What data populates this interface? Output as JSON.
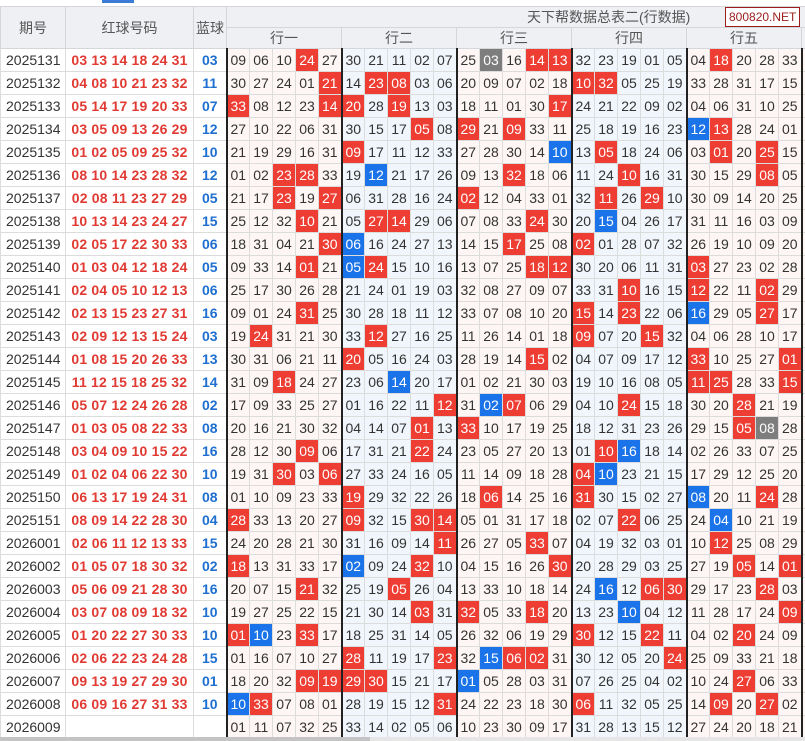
{
  "header": {
    "issue": "期号",
    "red": "红球号码",
    "blue": "蓝球",
    "title": "天下帮数据总表二(行数据)",
    "brand": "800820.NET",
    "groups": [
      "行一",
      "行二",
      "行三",
      "行四",
      "行五"
    ]
  },
  "colors": {
    "red_hit": "#ee3d33",
    "blue_hit": "#1a73e8",
    "both_hit": "#7d7d7d",
    "red_text": "#e03a33",
    "blue_text": "#1e6fd0"
  },
  "rows": [
    {
      "issue": "2025131",
      "red": "03 13 14 18 24 31",
      "blue": "03",
      "cells": "09 06 10 24 27 30 21 11 02 07 25 03 16 14 13 32 23 19 01 05 04 18 20 28 33"
    },
    {
      "issue": "2025132",
      "red": "04 08 10 21 23 32",
      "blue": "11",
      "cells": "30 27 24 01 21 14 23 08 03 06 20 09 07 02 18 10 32 05 25 19 33 28 31 17 15"
    },
    {
      "issue": "2025133",
      "red": "05 14 17 19 20 33",
      "blue": "07",
      "cells": "33 08 12 23 14 20 28 19 13 03 18 11 01 30 17 24 21 22 09 02 04 06 31 10 25"
    },
    {
      "issue": "2025134",
      "red": "03 05 09 13 26 29",
      "blue": "12",
      "cells": "27 10 22 06 31 30 15 17 05 08 29 21 09 33 11 25 18 19 16 23 12 13 28 24 01"
    },
    {
      "issue": "2025135",
      "red": "01 02 05 09 25 32",
      "blue": "10",
      "cells": "21 19 29 16 31 09 17 11 12 33 27 28 30 14 10 13 05 18 24 06 03 01 20 25 15"
    },
    {
      "issue": "2025136",
      "red": "08 10 14 23 28 32",
      "blue": "12",
      "cells": "01 02 23 28 33 19 12 21 17 26 09 13 32 18 06 11 24 10 16 31 30 15 29 08 05"
    },
    {
      "issue": "2025137",
      "red": "02 08 11 23 27 29",
      "blue": "05",
      "cells": "21 17 23 19 27 06 31 28 16 24 02 12 04 33 01 32 11 26 29 10 30 09 14 20 25"
    },
    {
      "issue": "2025138",
      "red": "10 13 14 23 24 27",
      "blue": "15",
      "cells": "25 12 32 10 21 05 27 14 29 06 07 08 33 24 30 20 15 04 26 17 31 11 16 03 09"
    },
    {
      "issue": "2025139",
      "red": "02 05 17 22 30 33",
      "blue": "06",
      "cells": "18 31 04 21 30 06 16 24 27 13 14 15 17 25 08 02 01 28 07 32 26 19 10 09 20"
    },
    {
      "issue": "2025140",
      "red": "01 03 04 12 18 24",
      "blue": "05",
      "cells": "09 33 14 01 21 05 24 15 10 16 13 07 25 18 12 30 20 06 11 31 03 27 23 02 28"
    },
    {
      "issue": "2025141",
      "red": "02 04 05 10 12 13",
      "blue": "06",
      "cells": "25 17 30 26 28 21 24 01 19 03 32 08 27 09 07 33 31 10 16 15 12 22 11 02 29"
    },
    {
      "issue": "2025142",
      "red": "02 13 15 23 27 31",
      "blue": "16",
      "cells": "09 01 24 31 25 30 28 18 11 12 33 07 08 10 20 15 14 23 22 06 16 29 05 27 17"
    },
    {
      "issue": "2025143",
      "red": "02 09 12 13 15 24",
      "blue": "03",
      "cells": "19 24 31 21 30 33 12 27 16 25 11 26 14 01 18 09 07 20 15 32 04 06 28 10 17"
    },
    {
      "issue": "2025144",
      "red": "01 08 15 20 26 33",
      "blue": "13",
      "cells": "30 31 06 21 11 20 05 16 24 03 28 19 14 15 02 04 07 09 17 12 33 10 25 27 01"
    },
    {
      "issue": "2025145",
      "red": "11 12 15 18 25 32",
      "blue": "14",
      "cells": "31 09 18 24 27 23 06 14 20 17 01 02 21 30 03 19 10 16 08 05 11 25 28 33 15"
    },
    {
      "issue": "2025146",
      "red": "05 07 12 24 26 28",
      "blue": "02",
      "cells": "17 09 33 25 27 01 16 22 11 12 31 02 07 06 29 04 10 24 15 18 30 20 28 21 19"
    },
    {
      "issue": "2025147",
      "red": "01 03 05 08 22 33",
      "blue": "08",
      "cells": "20 16 21 30 32 04 14 07 01 13 33 10 17 19 25 18 12 31 23 26 29 15 05 08 28"
    },
    {
      "issue": "2025148",
      "red": "03 04 09 10 15 22",
      "blue": "16",
      "cells": "28 12 30 09 06 17 31 21 22 24 23 05 27 20 13 01 10 16 18 14 02 26 33 07 25"
    },
    {
      "issue": "2025149",
      "red": "01 02 04 06 22 30",
      "blue": "10",
      "cells": "19 31 30 03 06 27 33 24 16 05 11 14 09 18 28 04 10 23 21 15 17 29 12 25 20"
    },
    {
      "issue": "2025150",
      "red": "06 13 17 19 24 31",
      "blue": "08",
      "cells": "01 10 09 23 33 19 29 32 22 26 18 06 14 25 16 31 30 15 02 27 08 20 11 24 28"
    },
    {
      "issue": "2025151",
      "red": "08 09 14 22 28 30",
      "blue": "04",
      "cells": "28 33 13 20 27 09 32 15 30 14 05 01 31 17 18 02 07 22 06 25 24 04 10 21 19"
    },
    {
      "issue": "2026001",
      "red": "02 06 11 12 13 33",
      "blue": "15",
      "cells": "24 20 28 21 30 31 16 09 14 11 26 27 05 33 07 04 19 32 03 01 10 12 25 08 29"
    },
    {
      "issue": "2026002",
      "red": "01 05 07 18 30 32",
      "blue": "02",
      "cells": "18 13 31 33 17 02 09 24 32 10 04 15 16 26 30 20 28 29 03 25 27 19 05 14 01"
    },
    {
      "issue": "2026003",
      "red": "05 06 09 21 28 30",
      "blue": "16",
      "cells": "20 07 15 21 32 25 19 05 26 04 13 33 10 18 14 24 16 12 06 30 29 17 23 28 03"
    },
    {
      "issue": "2026004",
      "red": "03 07 08 09 18 32",
      "blue": "10",
      "cells": "19 27 25 22 15 21 30 14 03 31 32 05 33 18 20 13 23 10 04 12 11 28 17 24 09"
    },
    {
      "issue": "2026005",
      "red": "01 20 22 27 30 33",
      "blue": "10",
      "cells": "01 10 23 33 17 18 25 31 14 05 26 32 06 19 29 30 12 15 22 11 04 02 20 24 09"
    },
    {
      "issue": "2026006",
      "red": "02 06 22 23 24 28",
      "blue": "15",
      "cells": "01 16 07 10 27 28 11 19 17 23 32 15 06 02 31 30 12 05 20 24 25 09 33 21 18"
    },
    {
      "issue": "2026007",
      "red": "09 13 19 27 29 30",
      "blue": "01",
      "cells": "18 20 32 09 19 29 30 15 21 17 01 05 28 03 31 07 26 25 04 02 10 24 27 06 33"
    },
    {
      "issue": "2026008",
      "red": "06 09 16 27 31 33",
      "blue": "10",
      "cells": "10 33 07 08 01 28 19 15 12 31 24 22 23 18 30 06 11 32 05 25 14 09 20 27 02"
    },
    {
      "issue": "2026009",
      "red": "",
      "blue": "",
      "cells": "01 11 07 32 25 33 14 02 05 06 10 23 30 09 17 31 28 13 15 12 27 24 20 18 21"
    }
  ]
}
